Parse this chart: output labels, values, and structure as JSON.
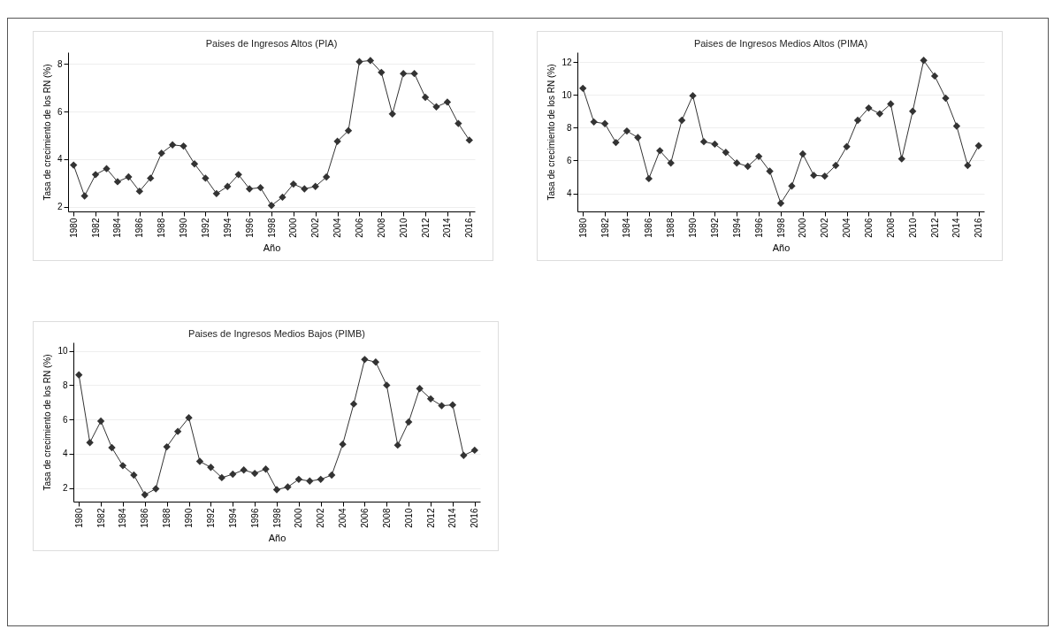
{
  "chart_data": [
    {
      "type": "line",
      "title": "Paises de Ingresos Altos (PIA)",
      "xlabel": "Año",
      "ylabel": "Tasa de crecimiento de los RN (%)",
      "x": [
        1980,
        1981,
        1982,
        1983,
        1984,
        1985,
        1986,
        1987,
        1988,
        1989,
        1990,
        1991,
        1992,
        1993,
        1994,
        1995,
        1996,
        1997,
        1998,
        1999,
        2000,
        2001,
        2002,
        2003,
        2004,
        2005,
        2006,
        2007,
        2008,
        2009,
        2010,
        2011,
        2012,
        2013,
        2014,
        2015,
        2016
      ],
      "series": [
        {
          "color": "#333333",
          "values": [
            3.75,
            2.45,
            3.35,
            3.6,
            3.05,
            3.25,
            2.65,
            3.2,
            4.25,
            4.6,
            4.55,
            3.8,
            3.2,
            2.55,
            2.85,
            3.35,
            2.75,
            2.8,
            2.05,
            2.4,
            2.95,
            2.75,
            2.85,
            3.25,
            4.75,
            5.2,
            8.1,
            8.15,
            7.65,
            5.9,
            7.6,
            7.6,
            6.6,
            6.2,
            6.4,
            5.5,
            4.8
          ]
        }
      ],
      "xlim": [
        1979.5,
        2016.5
      ],
      "xticks": [
        1980,
        1982,
        1984,
        1986,
        1988,
        1990,
        1992,
        1994,
        1996,
        1998,
        2000,
        2002,
        2004,
        2006,
        2008,
        2010,
        2012,
        2014,
        2016
      ],
      "ylim": [
        1.8,
        8.5
      ],
      "yticks": [
        2,
        4,
        6,
        8
      ],
      "grid": "y",
      "marker": "diamond",
      "line_style": "solid"
    },
    {
      "type": "line",
      "title": "Paises de Ingresos Medios Altos (PIMA)",
      "xlabel": "Año",
      "ylabel": "Tasa de crecimiento de los RN (%)",
      "x": [
        1980,
        1981,
        1982,
        1983,
        1984,
        1985,
        1986,
        1987,
        1988,
        1989,
        1990,
        1991,
        1992,
        1993,
        1994,
        1995,
        1996,
        1997,
        1998,
        1999,
        2000,
        2001,
        2002,
        2003,
        2004,
        2005,
        2006,
        2007,
        2008,
        2009,
        2010,
        2011,
        2012,
        2013,
        2014,
        2015,
        2016
      ],
      "series": [
        {
          "color": "#333333",
          "values": [
            10.4,
            8.35,
            8.25,
            7.1,
            7.8,
            7.4,
            4.9,
            6.6,
            5.85,
            8.45,
            9.95,
            7.15,
            7.0,
            6.5,
            5.85,
            5.65,
            6.25,
            5.35,
            3.4,
            4.45,
            6.4,
            5.1,
            5.05,
            5.7,
            6.85,
            8.45,
            9.2,
            8.85,
            9.45,
            6.1,
            9.0,
            12.1,
            11.15,
            9.8,
            8.1,
            5.7,
            6.9
          ]
        }
      ],
      "xlim": [
        1979.5,
        2016.5
      ],
      "xticks": [
        1980,
        1982,
        1984,
        1986,
        1988,
        1990,
        1992,
        1994,
        1996,
        1998,
        2000,
        2002,
        2004,
        2006,
        2008,
        2010,
        2012,
        2014,
        2016
      ],
      "ylim": [
        2.9,
        12.6
      ],
      "yticks": [
        4,
        6,
        8,
        10,
        12
      ],
      "grid": "y",
      "marker": "diamond",
      "line_style": "solid"
    },
    {
      "type": "line",
      "title": "Paises de Ingresos Medios Bajos (PIMB)",
      "xlabel": "Año",
      "ylabel": "Tasa de crecimiento de los RN (%)",
      "x": [
        1980,
        1981,
        1982,
        1983,
        1984,
        1985,
        1986,
        1987,
        1988,
        1989,
        1990,
        1991,
        1992,
        1993,
        1994,
        1995,
        1996,
        1997,
        1998,
        1999,
        2000,
        2001,
        2002,
        2003,
        2004,
        2005,
        2006,
        2007,
        2008,
        2009,
        2010,
        2011,
        2012,
        2013,
        2014,
        2015,
        2016
      ],
      "series": [
        {
          "color": "#333333",
          "values": [
            8.6,
            4.65,
            5.9,
            4.35,
            3.3,
            2.75,
            1.6,
            1.95,
            4.4,
            5.3,
            6.1,
            3.55,
            3.2,
            2.6,
            2.8,
            3.05,
            2.85,
            3.1,
            1.9,
            2.05,
            2.5,
            2.4,
            2.5,
            2.75,
            4.55,
            6.9,
            9.5,
            9.35,
            8.0,
            4.5,
            5.85,
            7.8,
            7.2,
            6.8,
            6.85,
            3.9,
            4.2
          ]
        }
      ],
      "xlim": [
        1979.5,
        2016.5
      ],
      "xticks": [
        1980,
        1982,
        1984,
        1986,
        1988,
        1990,
        1992,
        1994,
        1996,
        1998,
        2000,
        2002,
        2004,
        2006,
        2008,
        2010,
        2012,
        2014,
        2016
      ],
      "ylim": [
        1.2,
        10.5
      ],
      "yticks": [
        2,
        4,
        6,
        8,
        10
      ],
      "grid": "y",
      "marker": "diamond",
      "line_style": "solid"
    }
  ]
}
